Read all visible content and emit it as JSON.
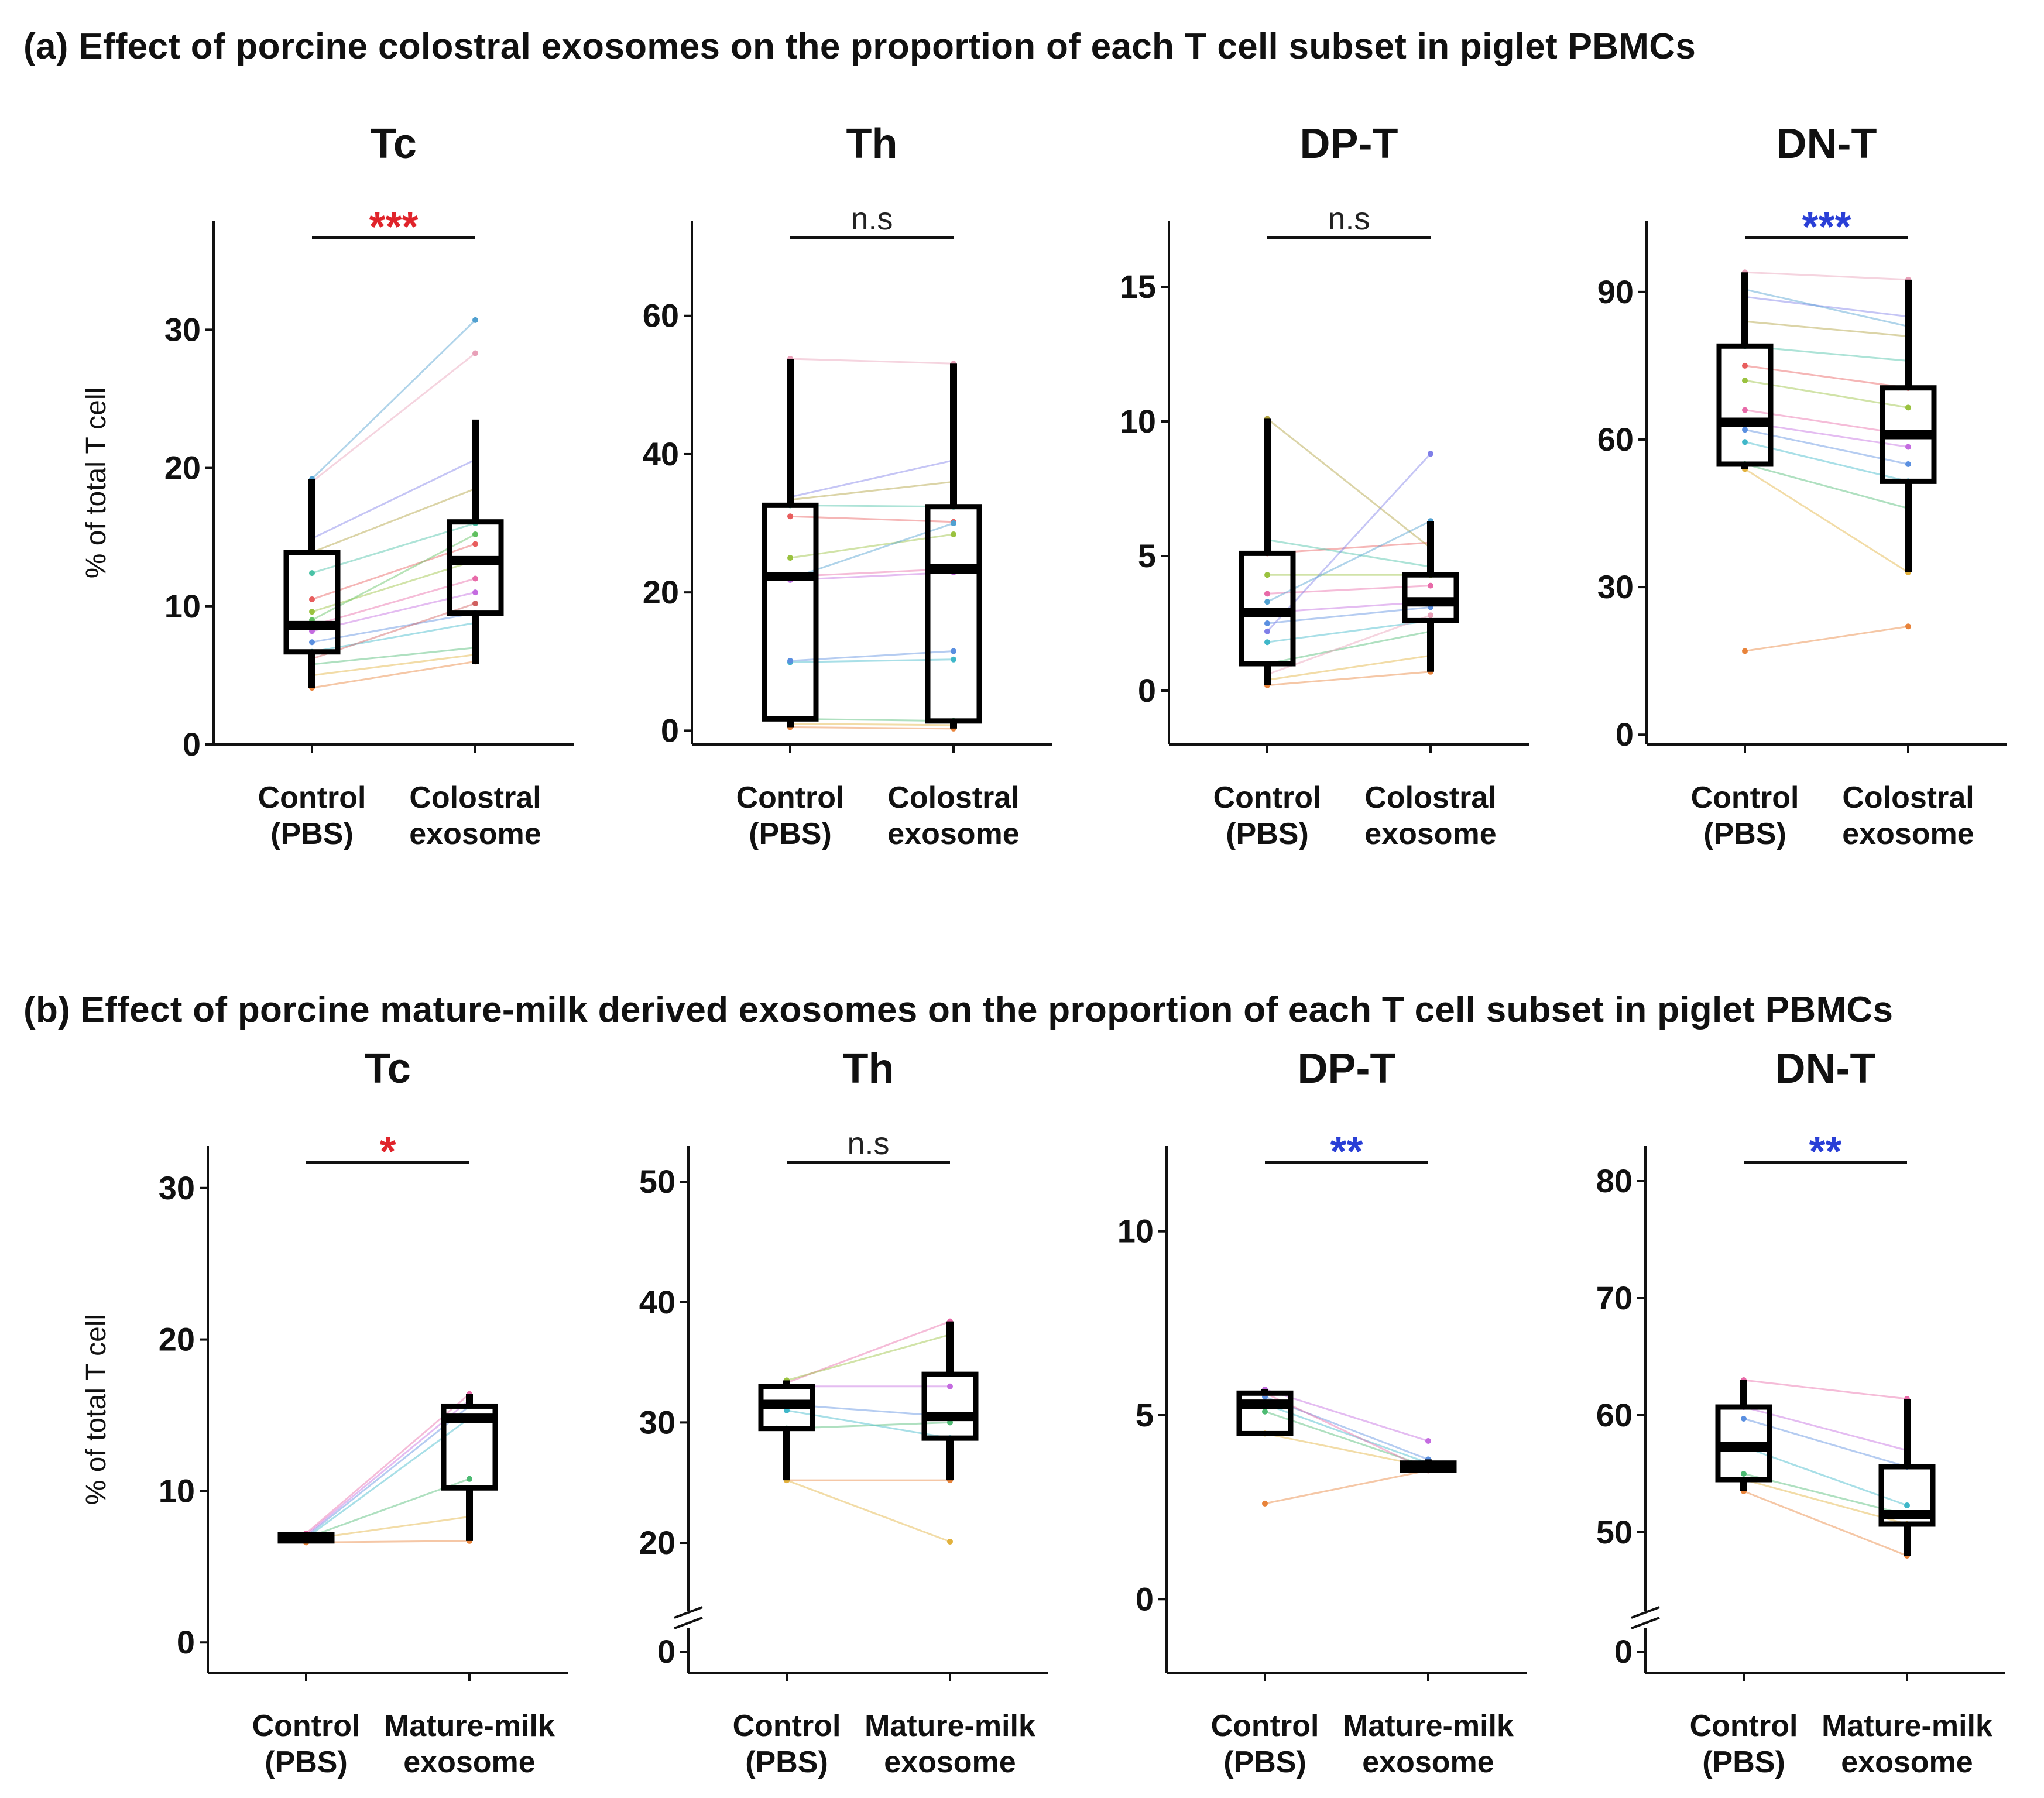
{
  "figure": {
    "panel_a_title": "(a)  Effect of porcine colostral exosomes on the proportion of each T cell subset in piglet PBMCs",
    "panel_b_title": "(b)  Effect of porcine mature-milk derived exosomes on the proportion of each T cell subset in piglet PBMCs",
    "y_axis_label": "% of total T cell",
    "colors": {
      "red_sig": "#e0242b",
      "blue_sig": "#2a3fd6",
      "ns": "#222222",
      "box": "#000000"
    }
  },
  "chart_data": [
    {
      "panel": "a",
      "type": "box",
      "title": "Tc",
      "categories": [
        [
          "Control",
          "(PBS)"
        ],
        [
          "Colostral",
          "exosome"
        ]
      ],
      "ylim": [
        0,
        37
      ],
      "yticks": [
        0,
        10,
        20,
        30
      ],
      "significance": "***",
      "sig_color": "red",
      "boxes": [
        {
          "q1": 6.7,
          "median": 8.6,
          "q3": 13.9,
          "min": 4.1,
          "max": 19.2
        },
        {
          "q1": 9.5,
          "median": 13.3,
          "q3": 16.1,
          "min": 5.8,
          "max": 23.5
        }
      ],
      "pairs": [
        [
          4.1,
          6.0
        ],
        [
          5.0,
          6.5
        ],
        [
          5.8,
          7.0
        ],
        [
          6.7,
          8.8
        ],
        [
          7.4,
          9.5
        ],
        [
          8.2,
          11.0
        ],
        [
          8.6,
          12.0
        ],
        [
          9.6,
          13.3
        ],
        [
          10.5,
          14.5
        ],
        [
          12.4,
          16.0
        ],
        [
          13.9,
          18.5
        ],
        [
          14.9,
          20.6
        ],
        [
          19.0,
          28.3
        ],
        [
          19.2,
          30.7
        ],
        [
          6.2,
          10.2
        ],
        [
          9.0,
          15.2
        ]
      ]
    },
    {
      "panel": "a",
      "type": "box",
      "title": "Th",
      "categories": [
        [
          "Control",
          "(PBS)"
        ],
        [
          "Colostral",
          "exosome"
        ]
      ],
      "ylim": [
        -2,
        72
      ],
      "yticks": [
        0,
        20,
        40,
        60
      ],
      "significance": "n.s",
      "sig_color": "ns",
      "boxes": [
        {
          "q1": 1.7,
          "median": 22.3,
          "q3": 32.6,
          "min": 0.5,
          "max": 53.8
        },
        {
          "q1": 1.4,
          "median": 23.4,
          "q3": 32.4,
          "min": 0.3,
          "max": 53.1
        }
      ],
      "pairs": [
        [
          0.5,
          0.3
        ],
        [
          1.0,
          0.8
        ],
        [
          1.7,
          1.4
        ],
        [
          9.9,
          10.3
        ],
        [
          10.1,
          11.5
        ],
        [
          21.8,
          22.9
        ],
        [
          22.3,
          23.4
        ],
        [
          25.0,
          28.4
        ],
        [
          31.0,
          30.2
        ],
        [
          32.6,
          32.4
        ],
        [
          33.4,
          36.0
        ],
        [
          33.8,
          39.1
        ],
        [
          53.8,
          53.1
        ],
        [
          22.0,
          30.0
        ]
      ]
    },
    {
      "panel": "a",
      "type": "box",
      "title": "DP-T",
      "categories": [
        [
          "Control",
          "(PBS)"
        ],
        [
          "Colostral",
          "exosome"
        ]
      ],
      "ylim": [
        -2,
        17
      ],
      "yticks": [
        0,
        5,
        10,
        15
      ],
      "significance": "n.s",
      "sig_color": "ns",
      "boxes": [
        {
          "q1": 1.0,
          "median": 2.9,
          "q3": 5.1,
          "min": 0.2,
          "max": 10.1
        },
        {
          "q1": 2.6,
          "median": 3.3,
          "q3": 4.3,
          "min": 0.7,
          "max": 6.3
        }
      ],
      "pairs": [
        [
          0.2,
          0.7
        ],
        [
          0.4,
          1.3
        ],
        [
          1.0,
          2.2
        ],
        [
          1.8,
          2.6
        ],
        [
          2.5,
          3.1
        ],
        [
          2.9,
          3.3
        ],
        [
          3.6,
          3.9
        ],
        [
          4.3,
          4.3
        ],
        [
          5.1,
          5.5
        ],
        [
          5.6,
          4.6
        ],
        [
          10.1,
          5.3
        ],
        [
          2.2,
          8.8
        ],
        [
          0.6,
          2.8
        ],
        [
          3.3,
          6.3
        ]
      ]
    },
    {
      "panel": "a",
      "type": "box",
      "title": "DN-T",
      "categories": [
        [
          "Control",
          "(PBS)"
        ],
        [
          "Colostral",
          "exosome"
        ]
      ],
      "ylim": [
        -2,
        102
      ],
      "yticks": [
        0,
        30,
        60,
        90
      ],
      "significance": "***",
      "sig_color": "blue",
      "boxes": [
        {
          "q1": 55.0,
          "median": 63.5,
          "q3": 79.0,
          "min": 54.0,
          "max": 94.0
        },
        {
          "q1": 51.5,
          "median": 61.0,
          "q3": 70.5,
          "min": 33.0,
          "max": 92.5
        }
      ],
      "pairs": [
        [
          17.0,
          22.0
        ],
        [
          54.0,
          33.0
        ],
        [
          55.0,
          46.0
        ],
        [
          59.5,
          51.5
        ],
        [
          62.0,
          55.0
        ],
        [
          63.5,
          58.5
        ],
        [
          66.0,
          61.0
        ],
        [
          72.0,
          66.5
        ],
        [
          75.0,
          70.5
        ],
        [
          79.0,
          76.0
        ],
        [
          84.0,
          81.0
        ],
        [
          89.0,
          85.0
        ],
        [
          94.0,
          92.5
        ],
        [
          90.5,
          83.0
        ]
      ]
    },
    {
      "panel": "b",
      "type": "box",
      "title": "Tc",
      "categories": [
        [
          "Control",
          "(PBS)"
        ],
        [
          "Mature-milk",
          "exosome"
        ]
      ],
      "ylim": [
        -2,
        32
      ],
      "yticks": [
        0,
        10,
        20,
        30
      ],
      "significance": "*",
      "sig_color": "red",
      "boxes": [
        {
          "q1": 6.7,
          "median": 6.9,
          "q3": 7.1,
          "min": 6.6,
          "max": 7.2
        },
        {
          "q1": 10.2,
          "median": 14.8,
          "q3": 15.6,
          "min": 6.7,
          "max": 16.4
        }
      ],
      "pairs": [
        [
          6.6,
          6.7
        ],
        [
          6.8,
          8.3
        ],
        [
          6.9,
          10.8
        ],
        [
          6.9,
          14.8
        ],
        [
          7.0,
          15.6
        ],
        [
          7.1,
          16.0
        ],
        [
          7.2,
          16.4
        ]
      ]
    },
    {
      "panel": "b",
      "type": "box",
      "title": "Th",
      "categories": [
        [
          "Control",
          "(PBS)"
        ],
        [
          "Mature-milk",
          "exosome"
        ]
      ],
      "ylim": [
        16.5,
        52
      ],
      "yticks": [
        0,
        20,
        30,
        40,
        50
      ],
      "axis_break": true,
      "significance": "n.s",
      "sig_color": "ns",
      "boxes": [
        {
          "q1": 29.5,
          "median": 31.5,
          "q3": 33.0,
          "min": 25.2,
          "max": 33.5
        },
        {
          "q1": 28.7,
          "median": 30.5,
          "q3": 34.0,
          "min": 25.2,
          "max": 38.4
        }
      ],
      "pairs": [
        [
          25.2,
          25.2
        ],
        [
          25.2,
          20.1
        ],
        [
          29.5,
          30.0
        ],
        [
          31.0,
          28.7
        ],
        [
          31.5,
          30.5
        ],
        [
          33.0,
          33.0
        ],
        [
          33.3,
          38.4
        ],
        [
          33.5,
          37.3
        ]
      ]
    },
    {
      "panel": "b",
      "type": "box",
      "title": "DP-T",
      "categories": [
        [
          "Control",
          "(PBS)"
        ],
        [
          "Mature-milk",
          "exosome"
        ]
      ],
      "ylim": [
        -2,
        12
      ],
      "yticks": [
        0,
        5,
        10
      ],
      "significance": "**",
      "sig_color": "blue",
      "boxes": [
        {
          "q1": 4.5,
          "median": 5.3,
          "q3": 5.6,
          "min": 4.5,
          "max": 5.7
        },
        {
          "q1": 3.5,
          "median": 3.6,
          "q3": 3.7,
          "min": 3.5,
          "max": 3.8
        }
      ],
      "pairs": [
        [
          2.6,
          3.5
        ],
        [
          4.5,
          3.6
        ],
        [
          5.1,
          3.6
        ],
        [
          5.3,
          3.7
        ],
        [
          5.5,
          3.8
        ],
        [
          5.7,
          4.3
        ],
        [
          5.6,
          3.5
        ]
      ]
    },
    {
      "panel": "b",
      "type": "box",
      "title": "DN-T",
      "categories": [
        [
          "Control",
          "(PBS)"
        ],
        [
          "Mature-milk",
          "exosome"
        ]
      ],
      "ylim": [
        45.5,
        82
      ],
      "yticks": [
        0,
        50,
        60,
        70,
        80
      ],
      "axis_break": true,
      "significance": "**",
      "sig_color": "blue",
      "boxes": [
        {
          "q1": 54.5,
          "median": 57.3,
          "q3": 60.7,
          "min": 53.5,
          "max": 63.0
        },
        {
          "q1": 50.7,
          "median": 51.5,
          "q3": 55.6,
          "min": 48.0,
          "max": 61.4
        }
      ],
      "pairs": [
        [
          53.5,
          48.0
        ],
        [
          54.5,
          50.7
        ],
        [
          55.0,
          51.5
        ],
        [
          57.3,
          52.3
        ],
        [
          59.7,
          55.6
        ],
        [
          60.7,
          57.0
        ],
        [
          63.0,
          61.4
        ]
      ]
    }
  ]
}
